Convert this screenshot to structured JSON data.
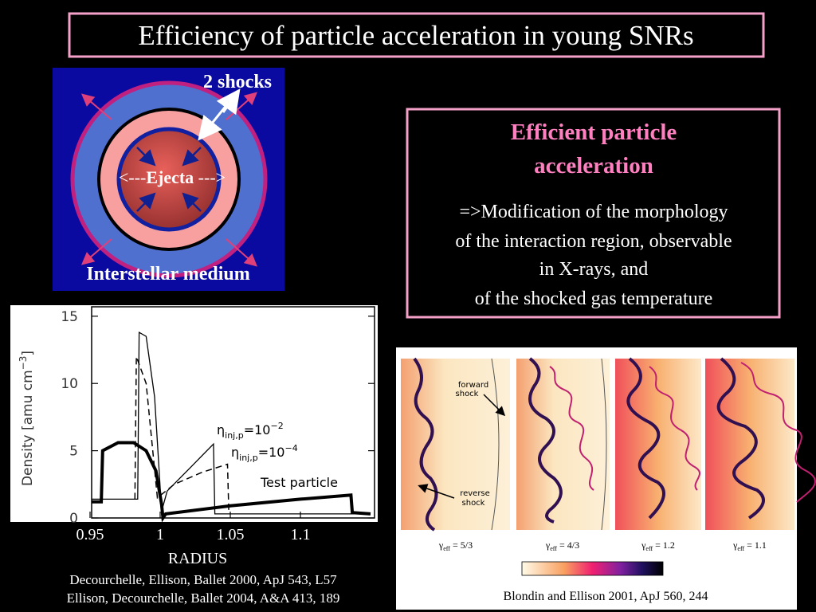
{
  "header": {
    "title": "Efficiency of particle acceleration in young SNRs"
  },
  "diagram": {
    "shocks_label": "2 shocks",
    "ejecta_left": "<---",
    "ejecta_label": "Ejecta",
    "ejecta_right": " --->",
    "medium_label": "Interstellar medium"
  },
  "infobox": {
    "heading": [
      "Efficient particle",
      "acceleration"
    ],
    "body": [
      "=>Modification of the morphology",
      "of the interaction region, observable",
      "in X-rays, and",
      "of the shocked gas temperature"
    ]
  },
  "chart_data": {
    "type": "line",
    "xlabel": "RADIUS",
    "ylabel": {
      "text": "Density [amu cm",
      "sup": "−3",
      "end": "]"
    },
    "xlim": [
      0.95,
      1.15
    ],
    "ylim": [
      0,
      15.7
    ],
    "xticks": [
      0.95,
      1,
      1.05,
      1.1
    ],
    "yticks": [
      0,
      5,
      10,
      15
    ],
    "color": "#000000",
    "series": [
      {
        "style": "thick",
        "x": [
          0.951,
          0.958,
          0.959,
          0.97,
          0.981,
          0.99,
          0.997,
          1.001,
          1.002,
          1.004,
          1.05,
          1.1,
          1.136,
          1.137,
          1.15
        ],
        "values": [
          1.2,
          1.2,
          5.0,
          5.6,
          5.6,
          5.0,
          3.5,
          1.0,
          0.0,
          0.3,
          0.9,
          1.4,
          1.7,
          0.4,
          0.3
        ]
      },
      {
        "style": "solid",
        "x": [
          0.951,
          0.984,
          0.985,
          0.99,
          0.996,
          0.999,
          1.001,
          1.005,
          1.022,
          1.038,
          1.039,
          1.15
        ],
        "values": [
          1.4,
          1.4,
          13.8,
          13.5,
          9,
          4,
          0.5,
          2,
          3.8,
          5.5,
          0.3,
          0.3
        ]
      },
      {
        "style": "dashed",
        "x": [
          0.982,
          0.983,
          0.99,
          0.998,
          1.01,
          1.03,
          1.048,
          1.049
        ],
        "values": [
          1.4,
          12,
          10,
          1.5,
          2.5,
          3.4,
          4.0,
          0.3
        ]
      }
    ],
    "annotations": [
      {
        "symbol": "η",
        "sub": "inj,p",
        "text": "=10",
        "sup": "−2"
      },
      {
        "symbol": "η",
        "sub": "inj,p",
        "text": "=10",
        "sup": "−4"
      },
      {
        "text": "Test particle"
      }
    ]
  },
  "citations": [
    "Decourchelle, Ellison, Ballet 2000, ApJ 543, L57",
    "Ellison, Decourchelle, Ballet 2004, A&A 413, 189"
  ],
  "simulation": {
    "forward_label": [
      "forward",
      "shock"
    ],
    "reverse_label": [
      "reverse",
      "shock"
    ],
    "panels": [
      {
        "symbol": "γ",
        "sub": "eff",
        "text": " = 5/3"
      },
      {
        "symbol": "γ",
        "sub": "eff",
        "text": " = 4/3"
      },
      {
        "symbol": "γ",
        "sub": "eff",
        "text": " = 1.2"
      },
      {
        "symbol": "γ",
        "sub": "eff",
        "text": " = 1.1"
      }
    ],
    "citation": "Blondin and Ellison 2001, ApJ 560, 244"
  }
}
